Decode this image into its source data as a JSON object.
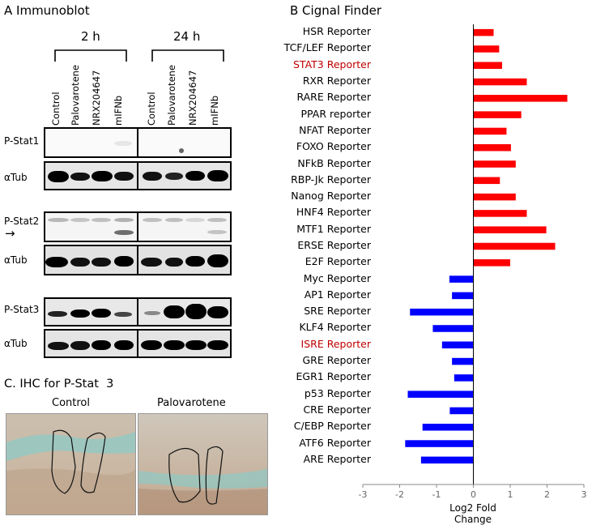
{
  "panel_a": {
    "title": "A Immunoblot",
    "time_labels": [
      "2 h",
      "24 h"
    ],
    "lanes": [
      "Control",
      "Palovarotene",
      "NRX204647",
      "mIFNb"
    ],
    "rows": [
      "P-Stat1",
      "αTub",
      "P-Stat2",
      "αTub",
      "P-Stat3",
      "αTub"
    ],
    "arrow": "→"
  },
  "panel_b": {
    "title": "B Cignal Finder"
  },
  "panel_c": {
    "title": "C. IHC for P-Stat  3",
    "labels": [
      "Control",
      "Palovarotene"
    ]
  },
  "chart_data": {
    "type": "bar",
    "orientation": "horizontal",
    "categories": [
      "HSR Reporter",
      "TCF/LEF Reporter",
      "STAT3 Reporter",
      "RXR Reporter",
      "RARE Reporter",
      "PPAR reporter",
      "NFAT Reporter",
      "FOXO Reporter",
      "NFkB Reporter",
      "RBP-Jk Reporter",
      "Nanog Reporter",
      "HNF4 Reporter",
      "MTF1 Reporter",
      "ERSE Reporter",
      "E2F Reporter",
      "Myc Reporter",
      "AP1 Reporter",
      "SRE Reporter",
      "KLF4 Reporter",
      "ISRE Reporter",
      "GRE Reporter",
      "EGR1 Reporter",
      "p53 Reporter",
      "CRE Reporter",
      "C/EBP Reporter",
      "ATF6 Reporter",
      "ARE Reporter"
    ],
    "values": [
      0.55,
      0.7,
      0.78,
      1.45,
      2.55,
      1.3,
      0.9,
      1.02,
      1.15,
      0.72,
      1.15,
      1.45,
      1.98,
      2.22,
      1.0,
      -0.65,
      -0.58,
      -1.72,
      -1.1,
      -0.85,
      -0.58,
      -0.52,
      -1.78,
      -0.64,
      -1.38,
      -1.85,
      -1.42
    ],
    "highlighted": [
      "STAT3 Reporter",
      "ISRE Reporter"
    ],
    "positive_color": "#ff0000",
    "negative_color": "#0000ff",
    "highlight_label_color": "#c00000",
    "xlabel": "Log2 Fold Change",
    "xlim": [
      -3,
      3
    ],
    "xticks": [
      "-3",
      "-2",
      "-1",
      "0",
      "1",
      "2",
      "3"
    ]
  }
}
